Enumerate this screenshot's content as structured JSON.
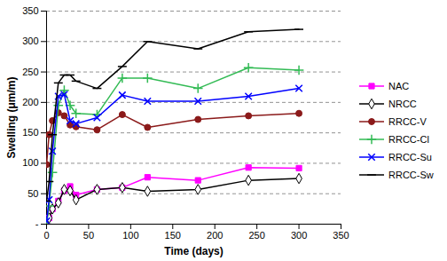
{
  "chart_data": {
    "type": "line",
    "x_label": "Time (days)",
    "y_label": "Swelling (μm/m)",
    "x": [
      0,
      3,
      7,
      14,
      21,
      28,
      35,
      60,
      90,
      120,
      180,
      240,
      300
    ],
    "xlim": [
      0,
      350
    ],
    "xticks": [
      0,
      50,
      100,
      150,
      200,
      250,
      300,
      350
    ],
    "ylim": [
      0,
      350
    ],
    "yticks": [
      {
        "value": 0,
        "label": "-"
      },
      50,
      100,
      150,
      200,
      250,
      300,
      350
    ],
    "grid": "y",
    "legend": "right",
    "series": [
      {
        "name": "NAC",
        "color": "#ff00ff",
        "marker": "square",
        "values": [
          0,
          10,
          25,
          38,
          55,
          62,
          48,
          57,
          60,
          77,
          72,
          93,
          92
        ]
      },
      {
        "name": "NRCC",
        "color": "#000000",
        "marker": "diamond",
        "values": [
          0,
          10,
          25,
          35,
          57,
          55,
          40,
          57,
          60,
          54,
          57,
          72,
          75
        ]
      },
      {
        "name": "RRCC-V",
        "color": "#8b1a1a",
        "marker": "circle",
        "values": [
          98,
          147,
          170,
          183,
          178,
          163,
          160,
          155,
          180,
          159,
          172,
          178,
          182
        ]
      },
      {
        "name": "RRCC-Cl",
        "color": "#33bb55",
        "marker": "plus",
        "values": [
          0,
          30,
          85,
          195,
          220,
          195,
          182,
          180,
          240,
          240,
          223,
          257,
          253
        ]
      },
      {
        "name": "RRCC-Su",
        "color": "#0000ff",
        "marker": "x",
        "values": [
          5,
          40,
          120,
          210,
          213,
          170,
          165,
          175,
          212,
          202,
          202,
          210,
          223
        ]
      },
      {
        "name": "RRCC-Sw",
        "color": "#000000",
        "marker": "dash",
        "values": [
          38,
          70,
          147,
          232,
          245,
          245,
          235,
          223,
          259,
          300,
          288,
          316,
          320
        ]
      }
    ]
  }
}
